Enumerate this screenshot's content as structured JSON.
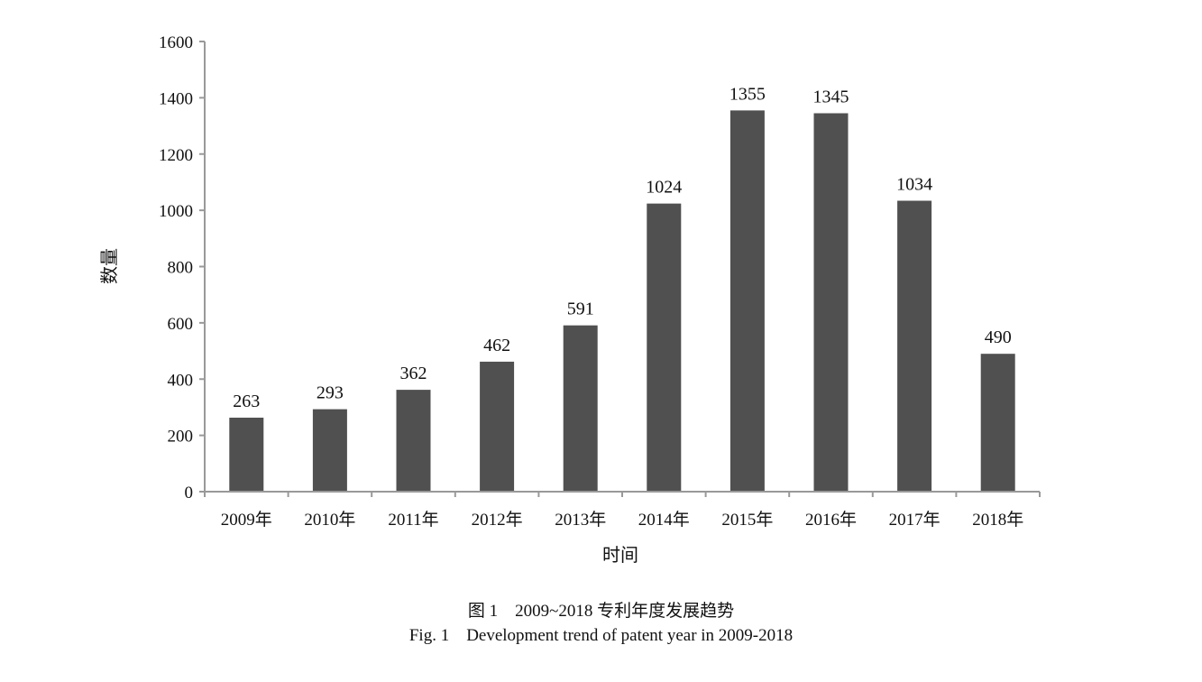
{
  "chart_data": {
    "type": "bar",
    "categories": [
      "2009年",
      "2010年",
      "2011年",
      "2012年",
      "2013年",
      "2014年",
      "2015年",
      "2016年",
      "2017年",
      "2018年"
    ],
    "values": [
      263,
      293,
      362,
      462,
      591,
      1024,
      1355,
      1345,
      1034,
      490
    ],
    "xlabel": "时间",
    "ylabel": "数量",
    "ylim": [
      0,
      1600
    ],
    "yticks": [
      0,
      200,
      400,
      600,
      800,
      1000,
      1200,
      1400,
      1600
    ],
    "grid": false,
    "bar_color": "#505050",
    "axis_color": "#999999"
  },
  "caption": {
    "cn": "图 1    2009~2018 专利年度发展趋势",
    "en": "Fig. 1    Development trend of patent year in 2009-2018"
  }
}
